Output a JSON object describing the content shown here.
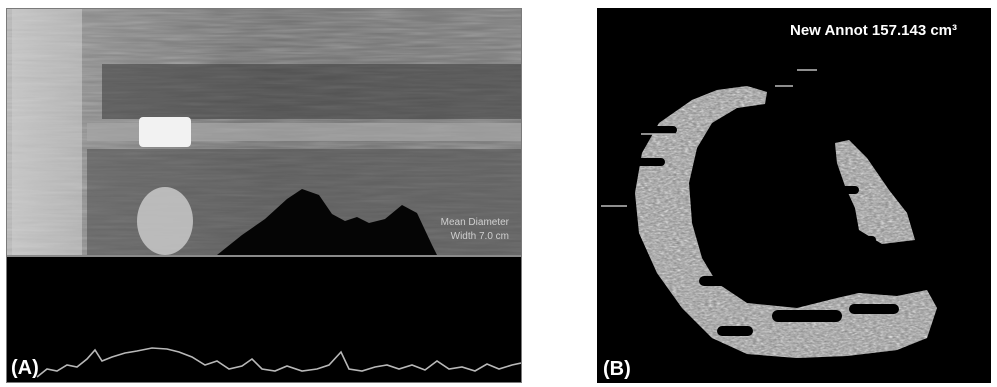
{
  "panel_a": {
    "label": "(A)",
    "overlay_line1": "Mean Diameter",
    "overlay_line2": "Width 7.0 cm"
  },
  "panel_b": {
    "label": "(B)",
    "annotation": "New Annot 157.143 cm³"
  }
}
